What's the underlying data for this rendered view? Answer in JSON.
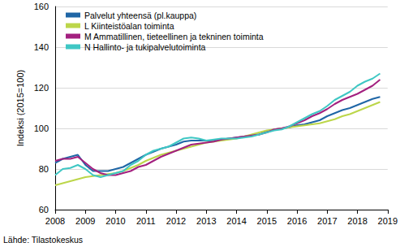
{
  "chart_data": {
    "type": "line",
    "y_label": "Indeksi (2015=100)",
    "source": "Lähde: Tilastokeskus",
    "x": [
      2008,
      2008.25,
      2008.5,
      2008.75,
      2009,
      2009.25,
      2009.5,
      2009.75,
      2010,
      2010.25,
      2010.5,
      2010.75,
      2011,
      2011.25,
      2011.5,
      2011.75,
      2012,
      2012.25,
      2012.5,
      2012.75,
      2013,
      2013.25,
      2013.5,
      2013.75,
      2014,
      2014.25,
      2014.5,
      2014.75,
      2015,
      2015.25,
      2015.5,
      2015.75,
      2016,
      2016.25,
      2016.5,
      2016.75,
      2017,
      2017.25,
      2017.5,
      2017.75,
      2018,
      2018.25,
      2018.5,
      2018.75
    ],
    "series": [
      {
        "name": "Palvelut yhteensä (pl.kauppa)",
        "color": "#1f66a6",
        "values": [
          83,
          85,
          86,
          87,
          82,
          79,
          79,
          79,
          80,
          81,
          83,
          85,
          87,
          88.5,
          90,
          91,
          92,
          93.5,
          94,
          94,
          94,
          94,
          94.5,
          95,
          95.5,
          96,
          96.5,
          97,
          98.5,
          99.5,
          100,
          100.5,
          101.5,
          102,
          103,
          104,
          106,
          107.5,
          109,
          110,
          111.5,
          113,
          114.5,
          115.5
        ]
      },
      {
        "name": "L Kiinteistöalan toiminta",
        "color": "#bcd64a",
        "values": [
          72,
          73,
          74,
          75,
          76,
          76.5,
          77,
          77.5,
          78,
          79,
          80.5,
          82,
          84,
          85.5,
          87,
          88,
          89,
          90,
          91,
          92,
          93,
          93.5,
          94,
          94.5,
          95,
          96,
          97,
          98,
          99,
          99.5,
          100,
          100.5,
          101,
          101.5,
          102,
          102.5,
          103.5,
          104.5,
          106,
          107,
          108.5,
          110,
          111.5,
          113
        ]
      },
      {
        "name": "M Ammatillinen, tieteellinen ja tekninen toiminta",
        "color": "#a3207f",
        "values": [
          84,
          85,
          85,
          86,
          83,
          80,
          78,
          77,
          77,
          78,
          79,
          81,
          82,
          84,
          86,
          87.5,
          89,
          90.5,
          92,
          92.5,
          93,
          93.5,
          94.5,
          95,
          95.5,
          96,
          96.5,
          97,
          98,
          99.5,
          100,
          101,
          102.5,
          104,
          106,
          107.5,
          109.5,
          112,
          114,
          115.5,
          117,
          119,
          121,
          124
        ]
      },
      {
        "name": "N Hallinto- ja tukipalvelutoiminta",
        "color": "#3fc7c4",
        "values": [
          77,
          80,
          80.5,
          82,
          80,
          77,
          76,
          77,
          78,
          79,
          82,
          84,
          87,
          89,
          90,
          91,
          93,
          95,
          95.5,
          95,
          94,
          94.5,
          95,
          95,
          95,
          95.5,
          96,
          97,
          98,
          99,
          99.5,
          101,
          103,
          105,
          107,
          108.5,
          111,
          114,
          116,
          118,
          121,
          123,
          124.5,
          127
        ]
      }
    ],
    "xlim": [
      2008,
      2019
    ],
    "xticks": [
      2008,
      2009,
      2010,
      2011,
      2012,
      2013,
      2014,
      2015,
      2016,
      2017,
      2018,
      2019
    ],
    "ylim": [
      60,
      160
    ],
    "yticks": [
      60,
      80,
      100,
      120,
      140,
      160
    ],
    "grid": true,
    "legend": "top-left"
  }
}
